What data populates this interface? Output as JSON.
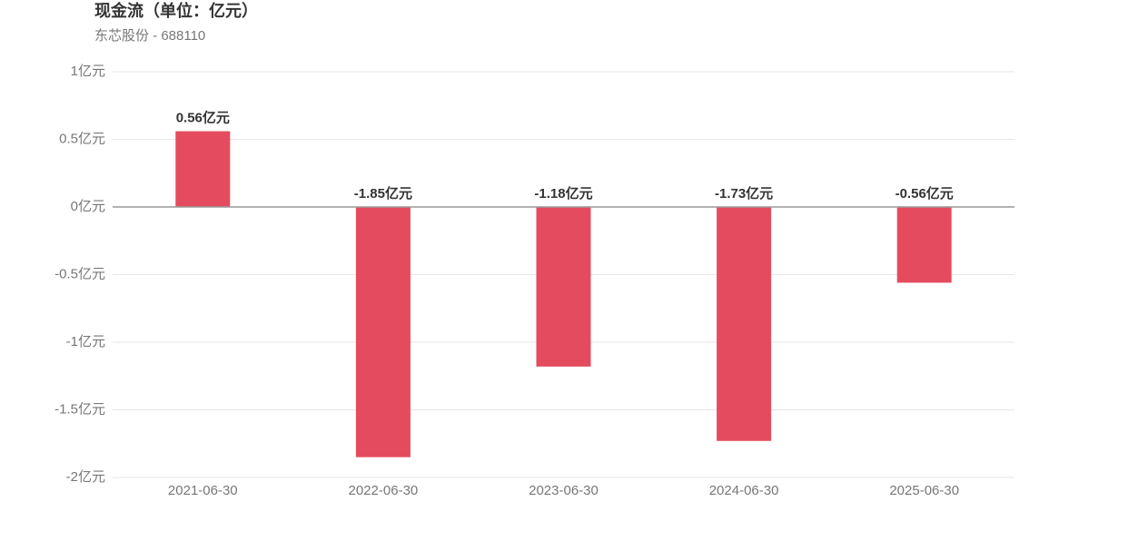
{
  "chart_data": {
    "type": "bar",
    "title": "现金流（单位：亿元）",
    "subtitle": "东芯股份 - 688110",
    "categories": [
      "2021-06-30",
      "2022-06-30",
      "2023-06-30",
      "2024-06-30",
      "2025-06-30"
    ],
    "values": [
      0.56,
      -1.85,
      -1.18,
      -1.73,
      -0.56
    ],
    "value_labels": [
      "0.56亿元",
      "-1.85亿元",
      "-1.18亿元",
      "-1.73亿元",
      "-0.56亿元"
    ],
    "color": "#e54b5e",
    "ylim": [
      -2,
      1
    ],
    "yticks": [
      {
        "value": -2,
        "label": "-2亿元"
      },
      {
        "value": -1.5,
        "label": "-1.5亿元"
      },
      {
        "value": -1,
        "label": "-1亿元"
      },
      {
        "value": -0.5,
        "label": "-0.5亿元"
      },
      {
        "value": 0,
        "label": "0亿元"
      },
      {
        "value": 0.5,
        "label": "0.5亿元"
      },
      {
        "value": 1,
        "label": "1亿元"
      }
    ],
    "grid": true
  }
}
